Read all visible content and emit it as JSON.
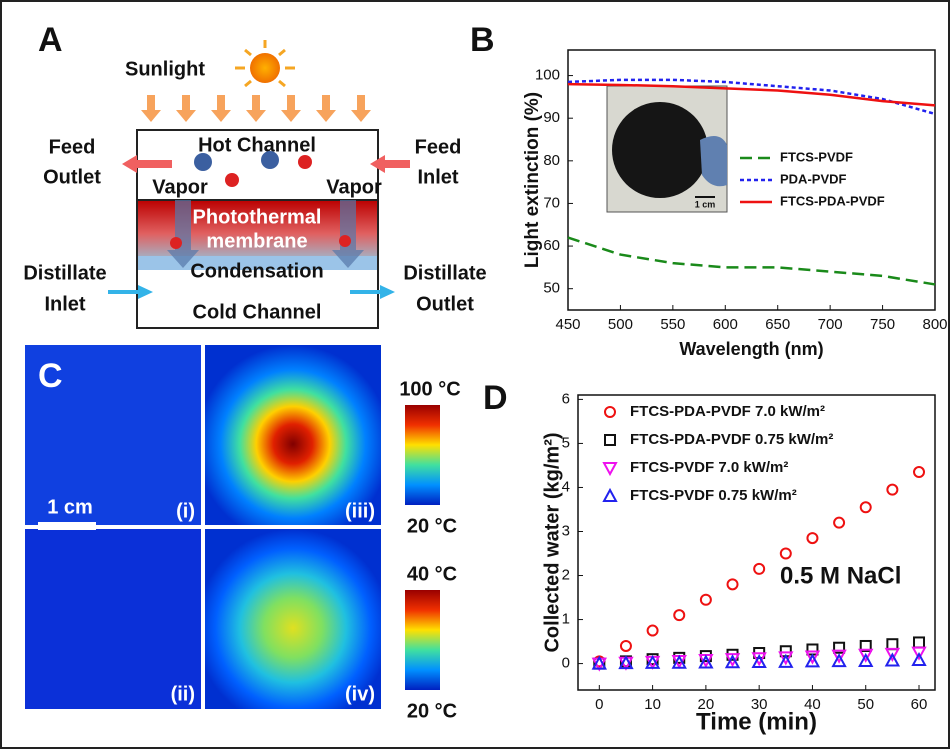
{
  "panels": {
    "A": {
      "label": "A",
      "sunlight": "Sunlight",
      "hot_channel": "Hot Channel",
      "feed_outlet": [
        "Feed",
        "Outlet"
      ],
      "feed_inlet": [
        "Feed",
        "Inlet"
      ],
      "vapor": "Vapor",
      "membrane": [
        "Photothermal",
        "membrane"
      ],
      "condensation": "Condensation",
      "cold_channel": "Cold Channel",
      "distillate_inlet": [
        "Distillate",
        "Inlet"
      ],
      "distillate_outlet": [
        "Distillate",
        "Outlet"
      ]
    },
    "B": {
      "label": "B",
      "inset_scale": "1 cm"
    },
    "C": {
      "label": "C",
      "scale": "1 cm",
      "images": [
        "(i)",
        "(iii)",
        "(ii)",
        "(iv)"
      ],
      "top_bar": [
        "100 °C",
        "20 °C"
      ],
      "bottom_bar": [
        "40 °C",
        "20 °C"
      ]
    },
    "D": {
      "label": "D"
    }
  },
  "chart_data": [
    {
      "type": "line",
      "y_label": "Light extinction (%)",
      "x_label": "Wavelength (nm)",
      "x": [
        450,
        500,
        550,
        600,
        650,
        700,
        750,
        800
      ],
      "xlim": [
        450,
        800
      ],
      "xticks": [
        450,
        500,
        550,
        600,
        650,
        700,
        750,
        800
      ],
      "ylim": [
        45,
        106
      ],
      "yticks": [
        50,
        60,
        70,
        80,
        90,
        100
      ],
      "series": [
        {
          "name": "FTCS-PVDF",
          "color": "#1a8a1a",
          "dash": "dashed",
          "values": [
            62,
            58,
            56,
            55,
            55,
            54,
            53,
            51
          ]
        },
        {
          "name": "PDA-PVDF",
          "color": "#2222ee",
          "dash": "dotted",
          "values": [
            98.5,
            99,
            99,
            98.5,
            97.5,
            96.5,
            94.5,
            91
          ]
        },
        {
          "name": "FTCS-PDA-PVDF",
          "color": "#ee1111",
          "dash": "solid",
          "values": [
            98,
            97.8,
            97.5,
            97,
            96.5,
            95.5,
            94,
            93
          ]
        }
      ]
    },
    {
      "type": "scatter",
      "y_label": "Collected water (kg/m²)",
      "x_label": "Time (min)",
      "annotation": "0.5 M NaCl",
      "x": [
        0,
        5,
        10,
        15,
        20,
        25,
        30,
        35,
        40,
        45,
        50,
        55,
        60
      ],
      "xlim": [
        -4,
        63
      ],
      "xticks": [
        0,
        10,
        20,
        30,
        40,
        50,
        60
      ],
      "ylim": [
        -0.6,
        6.1
      ],
      "yticks": [
        0,
        1,
        2,
        3,
        4,
        5,
        6
      ],
      "series": [
        {
          "name": "FTCS-PDA-PVDF 7.0 kW/m²",
          "color": "#ee1111",
          "marker": "circle",
          "values": [
            0.05,
            0.4,
            0.75,
            1.1,
            1.45,
            1.8,
            2.15,
            2.5,
            2.85,
            3.2,
            3.55,
            3.95,
            4.35
          ]
        },
        {
          "name": "FTCS-PDA-PVDF 0.75 kW/m²",
          "color": "#111111",
          "marker": "square",
          "values": [
            0,
            0.05,
            0.1,
            0.13,
            0.17,
            0.2,
            0.24,
            0.28,
            0.32,
            0.36,
            0.4,
            0.44,
            0.48
          ]
        },
        {
          "name": "FTCS-PVDF 7.0 kW/m²",
          "color": "#ee11ee",
          "marker": "triangle-down",
          "values": [
            0,
            0.02,
            0.04,
            0.06,
            0.08,
            0.1,
            0.12,
            0.14,
            0.16,
            0.18,
            0.2,
            0.22,
            0.25
          ]
        },
        {
          "name": "FTCS-PVDF 0.75 kW/m²",
          "color": "#2222ee",
          "marker": "triangle-up",
          "values": [
            0,
            0.01,
            0.015,
            0.02,
            0.025,
            0.03,
            0.035,
            0.04,
            0.05,
            0.055,
            0.06,
            0.07,
            0.08
          ]
        }
      ]
    }
  ]
}
